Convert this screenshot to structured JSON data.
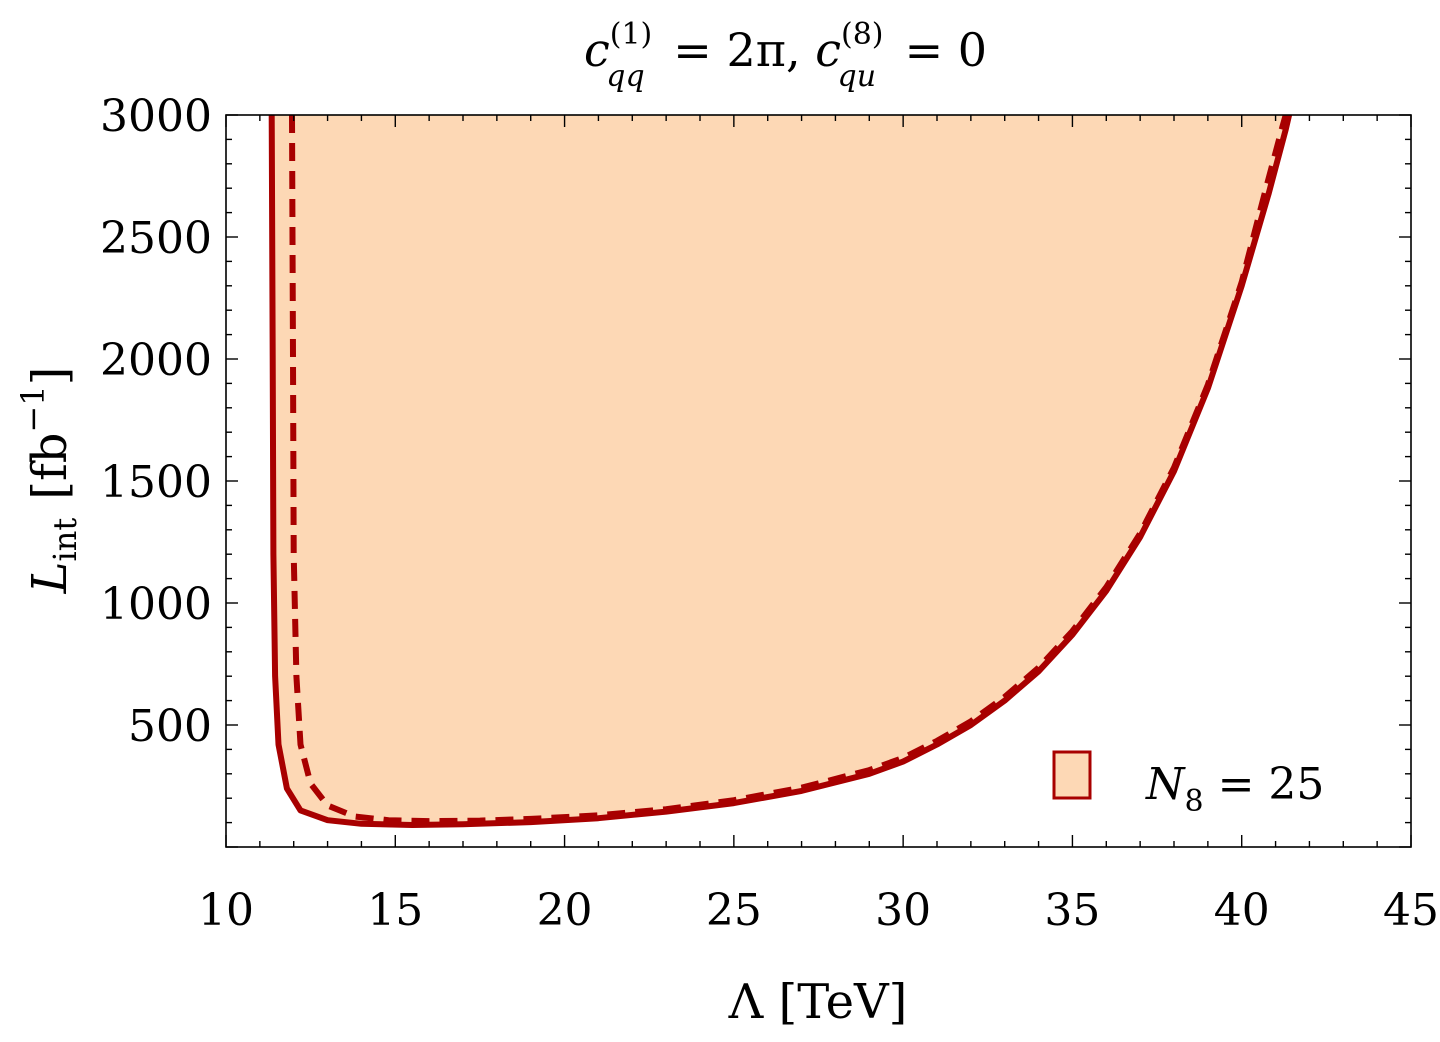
{
  "colors": {
    "fill": "#fdd8b5",
    "line": "#a80000",
    "frame": "#000000"
  },
  "chart_data": {
    "type": "area",
    "title": {
      "c1_symbol": "c",
      "c1_sup": "(1)",
      "c1_sub": "qq",
      "c1_rest": " = 2π, ",
      "c8_symbol": "c",
      "c8_sup": "(8)",
      "c8_sub": "qu",
      "c8_rest": " = 0"
    },
    "xlabel": "Λ [TeV]",
    "ylabel": {
      "symbol": "L",
      "sub": "int",
      "unit_open": "[fb",
      "unit_sup": "−1",
      "unit_close": "]"
    },
    "xlim": [
      10,
      45
    ],
    "ylim": [
      0,
      3000
    ],
    "x_ticks": [
      "10",
      "15",
      "20",
      "25",
      "30",
      "35",
      "40",
      "45"
    ],
    "y_ticks": [
      "500",
      "1000",
      "1500",
      "2000",
      "2500",
      "3000"
    ],
    "legend": {
      "symbol": "N",
      "sub": "8",
      "rest": " = 25",
      "placement": "bottom-right"
    },
    "series": [
      {
        "style": "solid",
        "x": [
          11.35,
          11.38,
          11.4,
          11.45,
          11.55,
          11.8,
          12.2,
          13.0,
          14.0,
          15.5,
          17.0,
          19.0,
          21.0,
          23.0,
          25.0,
          27.0,
          29.0,
          30.0,
          31.0,
          32.0,
          33.0,
          34.0,
          35.0,
          36.0,
          37.0,
          38.0,
          39.0,
          40.0,
          40.8,
          41.3,
          41.4
        ],
        "y": [
          3000,
          2000,
          1200,
          700,
          420,
          240,
          150,
          110,
          95,
          90,
          93,
          102,
          118,
          145,
          180,
          230,
          300,
          350,
          420,
          500,
          600,
          720,
          870,
          1050,
          1270,
          1540,
          1880,
          2300,
          2680,
          2940,
          3000
        ]
      },
      {
        "style": "dashed",
        "x": [
          11.95,
          11.98,
          12.0,
          12.08,
          12.2,
          12.5,
          13.0,
          13.8,
          14.8,
          16.0,
          17.5,
          19.0,
          21.0,
          23.0,
          25.0,
          27.0,
          29.0,
          30.0,
          31.0,
          32.0,
          33.0,
          34.0,
          35.0,
          36.0,
          37.0,
          38.0,
          39.0,
          40.0,
          40.7,
          41.2,
          41.3
        ],
        "y": [
          3000,
          2000,
          1200,
          700,
          420,
          260,
          170,
          125,
          110,
          106,
          108,
          115,
          130,
          155,
          192,
          243,
          315,
          365,
          435,
          515,
          615,
          735,
          885,
          1065,
          1285,
          1555,
          1895,
          2315,
          2690,
          2950,
          3000
        ]
      }
    ]
  }
}
